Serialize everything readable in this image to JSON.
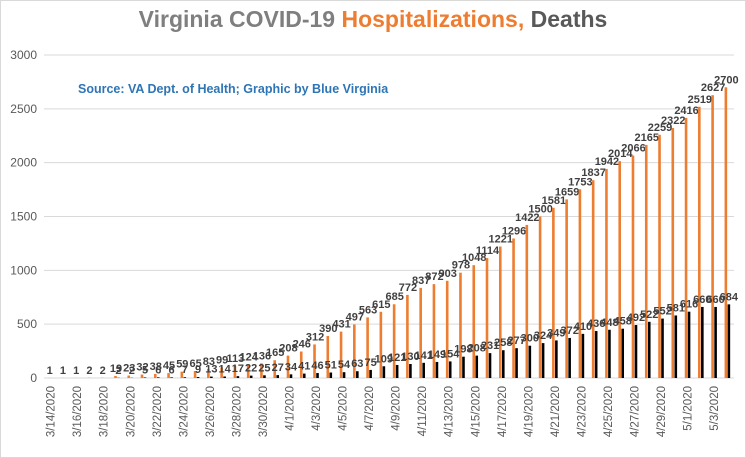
{
  "header": {
    "title_part1": "Virginia COVID-19 ",
    "title_part2": "Hospitalizations,",
    "title_part3": " Deaths"
  },
  "source_note": "Source: VA Dept. of Health; Graphic by Blue Virginia",
  "colors": {
    "hospitalizations": "#ed7d31",
    "deaths": "#000000",
    "title_grey": "#7f7f7f",
    "title_dark": "#595959",
    "source_blue": "#2e75b6",
    "gridline": "#d9d9d9"
  },
  "chart_data": {
    "type": "bar",
    "title": "Virginia COVID-19 Hospitalizations, Deaths",
    "xlabel": "",
    "ylabel": "",
    "ylim": [
      0,
      3000
    ],
    "yticks": [
      0,
      500,
      1000,
      1500,
      2000,
      2500,
      3000
    ],
    "grid": "horizontal",
    "legend": "none",
    "categories": [
      "3/14/2020",
      "3/15/2020",
      "3/16/2020",
      "3/17/2020",
      "3/18/2020",
      "3/19/2020",
      "3/20/2020",
      "3/21/2020",
      "3/22/2020",
      "3/23/2020",
      "3/24/2020",
      "3/25/2020",
      "3/26/2020",
      "3/27/2020",
      "3/28/2020",
      "3/29/2020",
      "3/30/2020",
      "3/31/2020",
      "4/1/2020",
      "4/2/2020",
      "4/3/2020",
      "4/4/2020",
      "4/5/2020",
      "4/6/2020",
      "4/7/2020",
      "4/8/2020",
      "4/9/2020",
      "4/10/2020",
      "4/11/2020",
      "4/12/2020",
      "4/13/2020",
      "4/14/2020",
      "4/15/2020",
      "4/16/2020",
      "4/17/2020",
      "4/18/2020",
      "4/19/2020",
      "4/20/2020",
      "4/21/2020",
      "4/22/2020",
      "4/23/2020",
      "4/24/2020",
      "4/25/2020",
      "4/26/2020",
      "4/27/2020",
      "4/28/2020",
      "4/29/2020",
      "4/30/2020",
      "5/1/2020",
      "5/2/2020",
      "5/3/2020",
      "5/4/2020"
    ],
    "x_tick_labels": [
      "3/14/2020",
      "",
      "3/16/2020",
      "",
      "3/18/2020",
      "",
      "3/20/2020",
      "",
      "3/22/2020",
      "",
      "3/24/2020",
      "",
      "3/26/2020",
      "",
      "3/28/2020",
      "",
      "3/30/2020",
      "",
      "4/1/2020",
      "",
      "4/3/2020",
      "",
      "4/5/2020",
      "",
      "4/7/2020",
      "",
      "4/9/2020",
      "",
      "4/11/2020",
      "",
      "4/13/2020",
      "",
      "4/15/2020",
      "",
      "4/17/2020",
      "",
      "4/19/2020",
      "",
      "4/21/2020",
      "",
      "4/23/2020",
      "",
      "4/25/2020",
      "",
      "4/27/2020",
      "",
      "4/29/2020",
      "",
      "5/1/2020",
      "",
      "5/3/2020",
      ""
    ],
    "series": [
      {
        "values": [
          1,
          1,
          1,
          2,
          2,
          19,
          23,
          32,
          38,
          45,
          59,
          65,
          83,
          99,
          113,
          124,
          136,
          165,
          208,
          246,
          312,
          390,
          431,
          497,
          563,
          615,
          685,
          772,
          837,
          872,
          903,
          978,
          1048,
          1114,
          1221,
          1296,
          1422,
          1500,
          1581,
          1659,
          1753,
          1837,
          1942,
          2014,
          2066,
          2165,
          2259,
          2322,
          2416,
          2519,
          2627,
          2700
        ]
      },
      {
        "values": [
          0,
          0,
          0,
          0,
          0,
          2,
          2,
          5,
          6,
          6,
          7,
          9,
          13,
          14,
          17,
          22,
          25,
          27,
          34,
          41,
          46,
          51,
          54,
          63,
          75,
          109,
          121,
          130,
          141,
          149,
          154,
          198,
          208,
          231,
          258,
          277,
          300,
          324,
          349,
          372,
          410,
          436,
          448,
          458,
          492,
          522,
          552,
          581,
          616,
          660,
          660,
          684
        ],
        "label_values": [
          "",
          "",
          "",
          "",
          "",
          "2",
          "2",
          "5",
          "6",
          "6",
          "7",
          "9",
          "13",
          "14",
          "17",
          "22",
          "25",
          "27",
          "34",
          "41",
          "46",
          "51",
          "54",
          "63",
          "75",
          "109",
          "121",
          "130",
          "141",
          "149",
          "154",
          "198",
          "208",
          "231",
          "258",
          "277",
          "300",
          "324",
          "349",
          "372",
          "410",
          "436",
          "448",
          "458",
          "492",
          "522",
          "552",
          "581",
          "616",
          "660",
          "660",
          "684"
        ]
      }
    ]
  }
}
